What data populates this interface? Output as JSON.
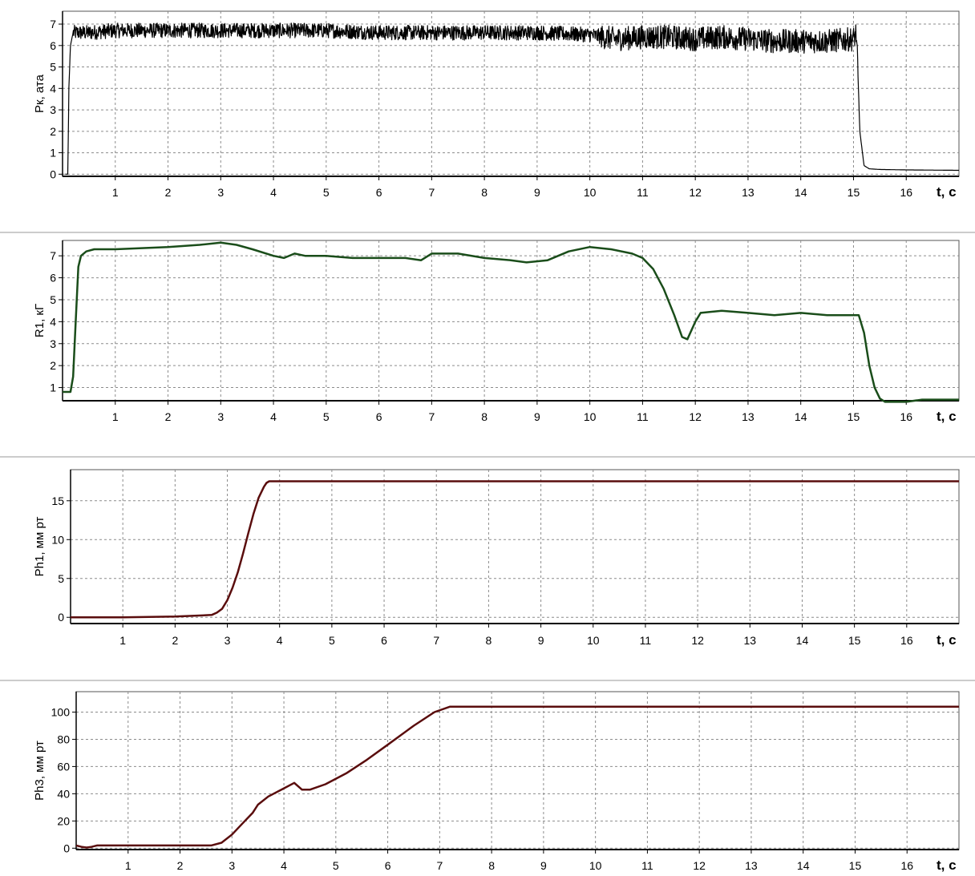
{
  "chart_data": [
    {
      "type": "line",
      "ylabel": "Рк, ата",
      "xlabel": "t, c",
      "xlim": [
        0,
        17
      ],
      "ylim": [
        -0.1,
        7.6
      ],
      "x_ticks": [
        1,
        2,
        3,
        4,
        5,
        6,
        7,
        8,
        9,
        10,
        11,
        12,
        13,
        14,
        15,
        16
      ],
      "y_ticks": [
        0,
        1,
        2,
        3,
        4,
        5,
        6,
        7
      ],
      "grid": true,
      "color": "#000000",
      "noise_amplitude": 0.35,
      "series": [
        {
          "x": [
            0.05,
            0.1,
            0.12,
            0.15,
            0.2,
            0.5,
            1,
            2,
            3,
            4,
            5,
            6,
            7,
            8,
            9,
            10,
            10.5,
            11,
            11.5,
            12,
            12.5,
            13,
            13.5,
            14,
            14.5,
            15,
            15.05,
            15.08,
            15.12,
            15.2,
            15.3,
            15.5,
            16,
            17
          ],
          "y": [
            0,
            0,
            4,
            6,
            6.6,
            6.6,
            6.7,
            6.7,
            6.7,
            6.7,
            6.7,
            6.6,
            6.6,
            6.6,
            6.6,
            6.5,
            6.3,
            6.4,
            6.4,
            6.3,
            6.4,
            6.3,
            6.2,
            6.2,
            6.2,
            6.3,
            6.6,
            5.0,
            2.0,
            0.4,
            0.25,
            0.22,
            0.2,
            0.18
          ]
        }
      ]
    },
    {
      "type": "line",
      "ylabel": "R1, кГ",
      "xlabel": "t, c",
      "xlim": [
        0,
        17
      ],
      "ylim": [
        0.4,
        7.7
      ],
      "x_ticks": [
        1,
        2,
        3,
        4,
        5,
        6,
        7,
        8,
        9,
        10,
        11,
        12,
        13,
        14,
        15,
        16
      ],
      "y_ticks": [
        1,
        2,
        3,
        4,
        5,
        6,
        7
      ],
      "grid": true,
      "color": "#1a4d1a",
      "noise_amplitude": 0,
      "series": [
        {
          "x": [
            0,
            0.15,
            0.2,
            0.25,
            0.3,
            0.35,
            0.45,
            0.6,
            1,
            2,
            2.6,
            3,
            3.3,
            3.6,
            4,
            4.2,
            4.4,
            4.6,
            5,
            5.5,
            6,
            6.5,
            6.8,
            7,
            7.5,
            8,
            8.5,
            8.8,
            9.2,
            9.6,
            10,
            10.4,
            10.8,
            11,
            11.2,
            11.4,
            11.6,
            11.75,
            11.85,
            12,
            12.1,
            12.5,
            13,
            13.5,
            14,
            14.5,
            15,
            15.1,
            15.2,
            15.3,
            15.4,
            15.5,
            15.6,
            16,
            16.3,
            17
          ],
          "y": [
            0.8,
            0.8,
            1.5,
            4.0,
            6.5,
            7.0,
            7.2,
            7.3,
            7.3,
            7.4,
            7.5,
            7.6,
            7.5,
            7.3,
            7.0,
            6.9,
            7.1,
            7.0,
            7.0,
            6.9,
            6.9,
            6.9,
            6.8,
            7.1,
            7.1,
            6.9,
            6.8,
            6.7,
            6.8,
            7.2,
            7.4,
            7.3,
            7.1,
            6.9,
            6.4,
            5.5,
            4.3,
            3.3,
            3.2,
            4.0,
            4.4,
            4.5,
            4.4,
            4.3,
            4.4,
            4.3,
            4.3,
            4.3,
            3.5,
            2.0,
            1.0,
            0.5,
            0.35,
            0.35,
            0.45,
            0.45
          ]
        }
      ]
    },
    {
      "type": "line",
      "ylabel": "Ph1, мм рт",
      "xlabel": "t, c",
      "xlim": [
        0,
        17
      ],
      "ylim": [
        -0.8,
        19
      ],
      "x_ticks": [
        1,
        2,
        3,
        4,
        5,
        6,
        7,
        8,
        9,
        10,
        11,
        12,
        13,
        14,
        15,
        16
      ],
      "y_ticks": [
        0,
        5,
        10,
        15
      ],
      "grid": true,
      "color": "#5a0d0d",
      "noise_amplitude": 0,
      "series": [
        {
          "x": [
            0,
            1,
            2,
            2.7,
            2.8,
            2.9,
            3.0,
            3.1,
            3.2,
            3.3,
            3.4,
            3.5,
            3.6,
            3.7,
            3.75,
            3.8,
            3.9,
            17
          ],
          "y": [
            0,
            0,
            0.1,
            0.3,
            0.6,
            1.1,
            2.2,
            3.8,
            5.8,
            8.2,
            10.8,
            13.3,
            15.4,
            16.8,
            17.3,
            17.5,
            17.5,
            17.5
          ]
        }
      ]
    },
    {
      "type": "line",
      "ylabel": "Ph3, мм рт",
      "xlabel": "t, c",
      "xlim": [
        0,
        17
      ],
      "ylim": [
        -1,
        115
      ],
      "x_ticks": [
        1,
        2,
        3,
        4,
        5,
        6,
        7,
        8,
        9,
        10,
        11,
        12,
        13,
        14,
        15,
        16
      ],
      "y_ticks": [
        0,
        20,
        40,
        60,
        80,
        100
      ],
      "grid": true,
      "color": "#5a0d0d",
      "noise_amplitude": 0,
      "series": [
        {
          "x": [
            0,
            0.1,
            0.2,
            0.3,
            0.4,
            1,
            2,
            2.6,
            2.8,
            3,
            3.2,
            3.4,
            3.5,
            3.7,
            4,
            4.2,
            4.35,
            4.5,
            4.8,
            5.2,
            5.6,
            6,
            6.5,
            6.9,
            7.2,
            17
          ],
          "y": [
            2,
            1,
            0.5,
            1,
            2,
            2,
            2,
            2,
            4,
            10,
            18,
            26,
            32,
            38,
            44,
            48,
            43,
            43,
            47,
            55,
            65,
            76,
            90,
            100,
            104,
            104
          ]
        }
      ]
    }
  ]
}
